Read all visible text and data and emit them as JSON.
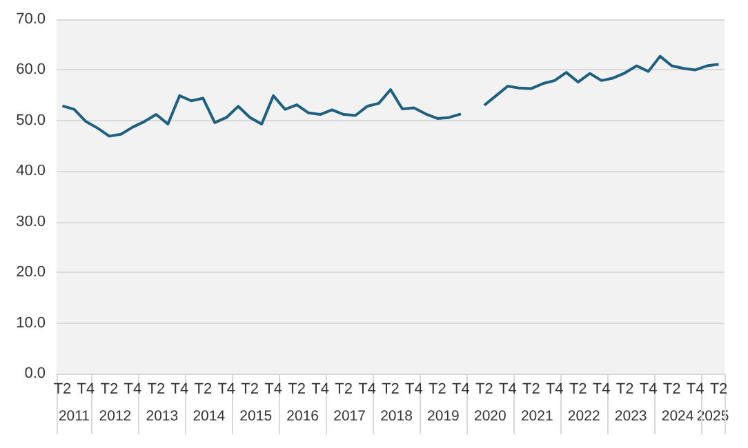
{
  "chart_data": {
    "type": "line",
    "categories": [
      "T2",
      null,
      "T4",
      null,
      "T2",
      null,
      "T4",
      null,
      "T2",
      null,
      "T4",
      null,
      "T2",
      null,
      "T4",
      null,
      "T2",
      null,
      "T4",
      null,
      "T2",
      null,
      "T4",
      null,
      "T2",
      null,
      "T4",
      null,
      "T2",
      null,
      "T4",
      null,
      "T2",
      null,
      "T4",
      null,
      "T2",
      null,
      "T4",
      null,
      "T2",
      null,
      "T4",
      null,
      "T2",
      null,
      "T4",
      null,
      "T2",
      null,
      "T4",
      null,
      "T2",
      null,
      "T4",
      null,
      "T2"
    ],
    "series": [
      {
        "color": "#1f5f80",
        "values": [
          52.9,
          52.2,
          49.8,
          48.5,
          46.9,
          47.3,
          48.7,
          49.8,
          51.2,
          49.3,
          54.9,
          53.9,
          54.4,
          49.6,
          50.6,
          52.8,
          50.6,
          49.3,
          54.9,
          52.2,
          53.1,
          51.5,
          51.2,
          52.1,
          51.2,
          51.0,
          52.8,
          53.4,
          56.1,
          52.3,
          52.5,
          51.3,
          50.4,
          50.6,
          51.3,
          null,
          53.0,
          54.9,
          56.8,
          56.4,
          56.3,
          57.3,
          57.9,
          59.5,
          57.6,
          59.3,
          57.9,
          58.4,
          59.4,
          60.8,
          59.7,
          62.7,
          60.8,
          60.3,
          60.0,
          60.8,
          61.1
        ]
      }
    ],
    "annotations": [
      "2011",
      "2012",
      "2013",
      "2014",
      "2015",
      "2016",
      "2017",
      "2018",
      "2019",
      "2020",
      "2021",
      "2022",
      "2023",
      "2024",
      "2025"
    ],
    "ylim": [
      0,
      70
    ],
    "yticks": [
      {
        "value": 0,
        "label": "0.0"
      },
      {
        "value": 10,
        "label": "10.0"
      },
      {
        "value": 20,
        "label": "20.0"
      },
      {
        "value": 30,
        "label": "30.0"
      },
      {
        "value": 40,
        "label": "40.0"
      },
      {
        "value": 50,
        "label": "50.0"
      },
      {
        "value": 60,
        "label": "60.0"
      },
      {
        "value": 70,
        "label": "70.0"
      }
    ],
    "grid": "y",
    "marker": "none",
    "line_style": "solid"
  }
}
